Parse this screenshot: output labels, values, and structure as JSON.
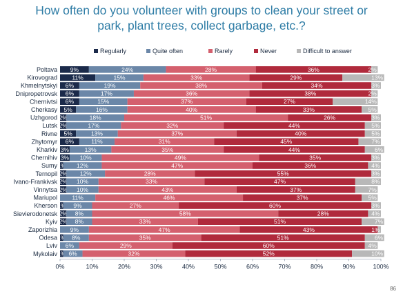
{
  "title_lines": [
    "How often do you volunteer with groups to clean your street or",
    "park, plant trees, collect garbage, etc.?"
  ],
  "page_number": "86",
  "chart_data": {
    "type": "bar",
    "orientation": "horizontal",
    "stacked": true,
    "percent": true,
    "categories": [
      "Poltava",
      "Kirovograd",
      "Khmelnytskyi",
      "Dnipropetrovsk",
      "Chernivtsi",
      "Cherkasy",
      "Uzhgorod",
      "Lutsk",
      "Rivne",
      "Zhytomyr",
      "Kharkiv",
      "Chernihiv",
      "Sumy",
      "Ternopil",
      "Ivano-Frankivsk",
      "Vinnytsa",
      "Mariupol",
      "Kherson",
      "Sievierodonetsk",
      "Kyiv",
      "Zaporizhia",
      "Odesa",
      "Lviv",
      "Mykolaiv"
    ],
    "series": [
      {
        "name": "Regularly",
        "color": "#1b2a4a",
        "values": [
          9,
          11,
          6,
          6,
          6,
          5,
          2,
          2,
          5,
          6,
          3,
          3,
          1,
          2,
          2,
          2,
          0,
          1,
          2,
          2,
          0,
          1,
          0,
          1
        ]
      },
      {
        "name": "Quite often",
        "color": "#6b87a8",
        "values": [
          24,
          15,
          19,
          17,
          15,
          16,
          18,
          17,
          13,
          11,
          13,
          10,
          12,
          12,
          10,
          10,
          11,
          9,
          8,
          8,
          9,
          8,
          6,
          6
        ]
      },
      {
        "name": "Rarely",
        "color": "#d4606e",
        "values": [
          28,
          33,
          38,
          36,
          37,
          40,
          51,
          32,
          37,
          31,
          35,
          49,
          47,
          28,
          33,
          43,
          46,
          27,
          58,
          33,
          47,
          35,
          29,
          32
        ]
      },
      {
        "name": "Never",
        "color": "#b02a3c",
        "values": [
          36,
          29,
          34,
          38,
          27,
          33,
          26,
          44,
          40,
          45,
          44,
          35,
          36,
          55,
          47,
          37,
          37,
          60,
          28,
          51,
          43,
          51,
          60,
          52
        ]
      },
      {
        "name": "Difficult to answer",
        "color": "#b8b8b8",
        "values": [
          2,
          13,
          3,
          2,
          14,
          5,
          3,
          5,
          5,
          7,
          6,
          3,
          4,
          3,
          8,
          7,
          5,
          3,
          4,
          7,
          1,
          6,
          4,
          10
        ]
      }
    ],
    "xlim": [
      0,
      100
    ],
    "xticks": [
      "0%",
      "10%",
      "20%",
      "30%",
      "40%",
      "50%",
      "60%",
      "70%",
      "80%",
      "90%",
      "100%"
    ],
    "legend_position": "top"
  }
}
